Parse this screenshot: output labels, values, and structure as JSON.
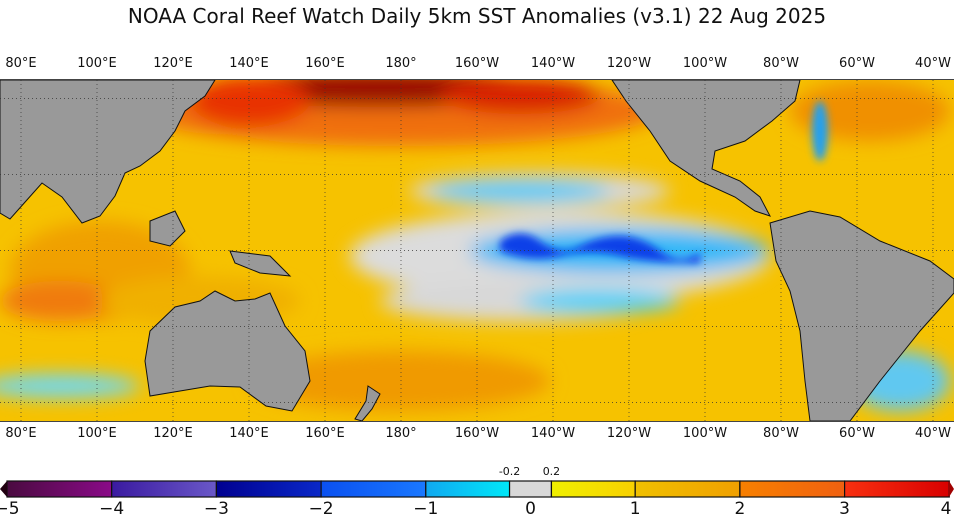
{
  "title": "NOAA Coral Reef Watch Daily 5km SST Anomalies  (v3.1)   22 Aug 2025",
  "longitude_labels": [
    "80°E",
    "100°E",
    "120°E",
    "140°E",
    "160°E",
    "180°",
    "160°W",
    "140°W",
    "120°W",
    "100°W",
    "80°W",
    "60°W",
    "40°W"
  ],
  "colorbar": {
    "ticks": [
      "−5",
      "−4",
      "−3",
      "−2",
      "−1",
      "0",
      "1",
      "2",
      "3",
      "4"
    ],
    "minor_labels": [
      "-0.2",
      "0.2"
    ],
    "segments": [
      {
        "from": -5,
        "to": -4,
        "c1": "#4a0a40",
        "c2": "#8a0a88"
      },
      {
        "from": -4,
        "to": -3,
        "c1": "#3a1aa0",
        "c2": "#6a58c8"
      },
      {
        "from": -3,
        "to": -2,
        "c1": "#000090",
        "c2": "#0a28c8"
      },
      {
        "from": -2,
        "to": -1,
        "c1": "#0a50f0",
        "c2": "#1a78ff"
      },
      {
        "from": -1,
        "to": -0.2,
        "c1": "#10a8f0",
        "c2": "#00e8f8"
      },
      {
        "from": -0.2,
        "to": 0.2,
        "c1": "#d8d8d8",
        "c2": "#d8d8d8"
      },
      {
        "from": 0.2,
        "to": 1,
        "c1": "#f0f000",
        "c2": "#f8d000"
      },
      {
        "from": 1,
        "to": 2,
        "c1": "#f0c000",
        "c2": "#f0a000"
      },
      {
        "from": 2,
        "to": 3,
        "c1": "#f88000",
        "c2": "#f06010"
      },
      {
        "from": 3,
        "to": 4,
        "c1": "#f83010",
        "c2": "#d80000"
      }
    ]
  },
  "colors": {
    "land": "#999999",
    "base_ocean": "#f6c200"
  }
}
